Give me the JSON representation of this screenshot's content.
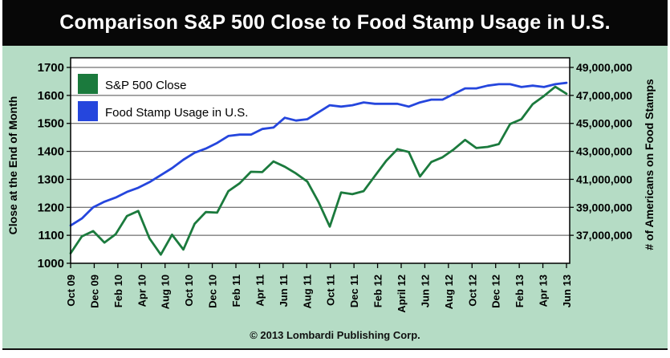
{
  "header": {
    "title": "Comparison S&P 500 Close to Food Stamp Usage in U.S."
  },
  "footer": {
    "copyright": "© 2013 Lombardi Publishing Corp."
  },
  "colors": {
    "band_black": "#070707",
    "background_mint": "#b5dcc5",
    "plot_white": "#ffffff",
    "grid": "#4d4d4d",
    "axis": "#000000",
    "sp500_green": "#1b7a3d",
    "foodstamp_blue": "#2546dd"
  },
  "chart_data": {
    "type": "line",
    "title": "Comparison S&P 500 Close to Food Stamp Usage in U.S.",
    "grid": true,
    "legend_position": "top-left",
    "left_axis": {
      "label": "Close at the End of Month",
      "ticks": [
        1700,
        1600,
        1500,
        1400,
        1300,
        1200,
        1100,
        1000
      ],
      "range": [
        1000,
        1734
      ]
    },
    "right_axis": {
      "label": "# of Americans on Food Stamps",
      "tick_labels": [
        "49,000,000",
        "47,000,000",
        "45,000,000",
        "43,000,000",
        "41,000,000",
        "39,000,000",
        "37,000,000"
      ],
      "tick_values_millions": [
        49,
        47,
        45,
        43,
        41,
        39,
        37
      ],
      "range_millions": [
        35,
        49.7
      ]
    },
    "x_axis": {
      "tick_labels": [
        "Oct 09",
        "Dec 09",
        "Feb 10",
        "Apr 10",
        "Aug 10",
        "Oct 10",
        "Dec 10",
        "Feb 11",
        "Apr 11",
        "Jun 11",
        "Aug 11",
        "Oct 11",
        "Dec 11",
        "Feb 12",
        "April 12",
        "Jun 12",
        "Aug 12",
        "Oct 12",
        "Dec 12",
        "Feb 13",
        "Apr 13",
        "Jun 13"
      ],
      "note": "monthly data Oct 2009 - Jun 2013"
    },
    "series": [
      {
        "name": "S&P 500 Close",
        "axis": "left",
        "color": "#1b7a3d",
        "values": [
          1036,
          1096,
          1115,
          1074,
          1104,
          1169,
          1187,
          1089,
          1031,
          1102,
          1049,
          1141,
          1183,
          1181,
          1258,
          1286,
          1327,
          1326,
          1364,
          1345,
          1321,
          1292,
          1219,
          1131,
          1253,
          1247,
          1258,
          1312,
          1366,
          1408,
          1398,
          1310,
          1362,
          1379,
          1407,
          1441,
          1412,
          1416,
          1426,
          1498,
          1515,
          1569,
          1598,
          1631,
          1606
        ]
      },
      {
        "name": "Food Stamp Usage in U.S.",
        "axis": "right",
        "color": "#2546dd",
        "values_millions": [
          37.7,
          38.2,
          39.0,
          39.4,
          39.7,
          40.1,
          40.4,
          40.8,
          41.3,
          41.8,
          42.4,
          42.9,
          43.2,
          43.6,
          44.1,
          44.2,
          44.2,
          44.6,
          44.7,
          45.4,
          45.2,
          45.3,
          45.8,
          46.3,
          46.2,
          46.3,
          46.5,
          46.4,
          46.4,
          46.4,
          46.2,
          46.5,
          46.7,
          46.7,
          47.1,
          47.5,
          47.5,
          47.7,
          47.8,
          47.8,
          47.6,
          47.7,
          47.6,
          47.8,
          47.9
        ]
      }
    ]
  }
}
